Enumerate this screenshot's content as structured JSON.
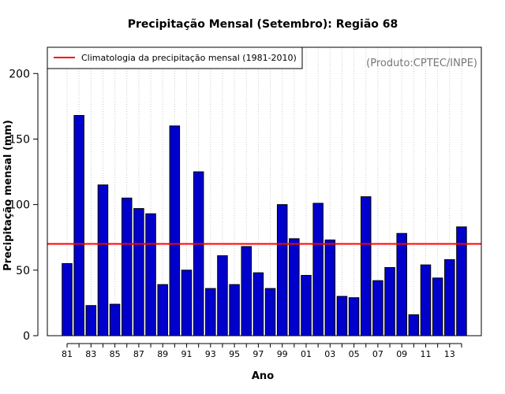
{
  "chart_data": {
    "type": "bar",
    "title": "Precipitação Mensal (Setembro): Região 68",
    "xlabel": "Ano",
    "ylabel": "Precipitação mensal (mm)",
    "ylim": [
      0,
      220
    ],
    "yticks": [
      0,
      50,
      100,
      150,
      200
    ],
    "grid": "vertical dotted",
    "credit": "(Produto:CPTEC/INPE)",
    "categories": [
      "81",
      "82",
      "83",
      "84",
      "85",
      "86",
      "87",
      "88",
      "89",
      "90",
      "91",
      "92",
      "93",
      "94",
      "95",
      "96",
      "97",
      "98",
      "99",
      "00",
      "01",
      "02",
      "03",
      "04",
      "05",
      "06",
      "07",
      "08",
      "09",
      "10",
      "11",
      "12",
      "13",
      "14"
    ],
    "tick_labels": [
      "81",
      "83",
      "85",
      "87",
      "89",
      "91",
      "93",
      "95",
      "97",
      "99",
      "01",
      "03",
      "05",
      "07",
      "09",
      "11",
      "13"
    ],
    "series": [
      {
        "name": "Precipitação mensal",
        "color": "#0000cd",
        "values": [
          55,
          168,
          23,
          115,
          24,
          105,
          97,
          93,
          39,
          160,
          50,
          125,
          36,
          61,
          39,
          68,
          48,
          36,
          100,
          74,
          46,
          101,
          73,
          30,
          29,
          106,
          42,
          52,
          78,
          16,
          54,
          44,
          58,
          83
        ]
      }
    ],
    "reference_line": {
      "label": "Climatologia da precipitação mensal (1981-2010)",
      "value": 70,
      "color": "#ff0000"
    },
    "legend_position": "top-left"
  }
}
